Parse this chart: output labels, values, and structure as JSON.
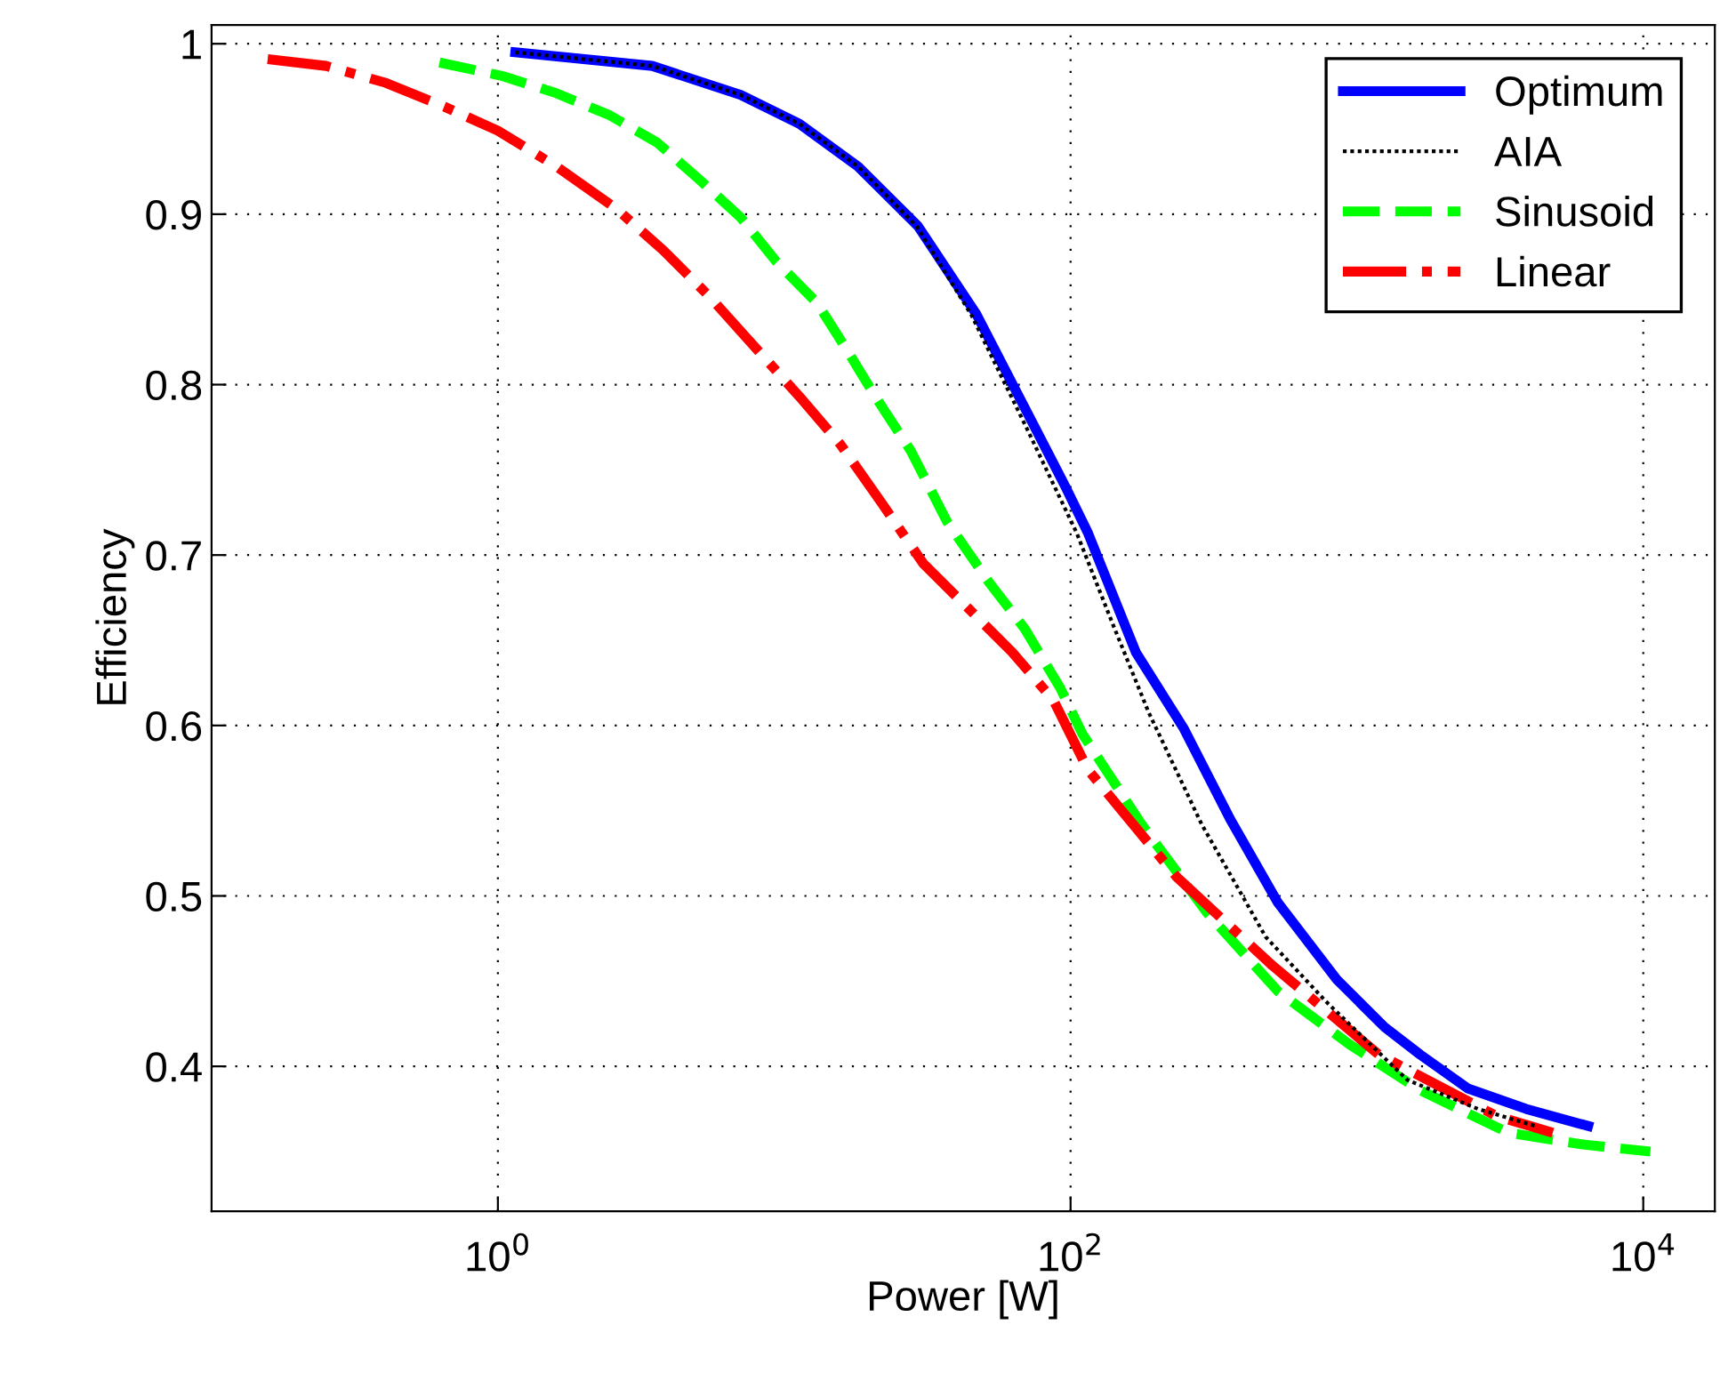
{
  "chart_data": {
    "type": "line",
    "xlabel": "Power [W]",
    "ylabel": "Efficiency",
    "log": "x",
    "xlim": [
      0.1,
      17783
    ],
    "xticks": [
      {
        "value": 1,
        "label": "10$^{0}$"
      },
      {
        "value": 100,
        "label": "10$^{2}$"
      },
      {
        "value": 10000,
        "label": "10$^{4}$"
      }
    ],
    "ylim": [
      0.315,
      1.011
    ],
    "yticks": [
      0.4,
      0.5,
      0.6,
      0.7,
      0.8,
      0.9,
      {
        "value": 1,
        "label": "1"
      }
    ],
    "grid": true,
    "legend": "top right",
    "series": [
      {
        "name": "Optimum",
        "color": "#0000ff",
        "line_style": "solid",
        "x": [
          1.15,
          3.46,
          7.05,
          11.3,
          18.1,
          29.3,
          47,
          75,
          96,
          115,
          169,
          249,
          361,
          530,
          850,
          1250,
          1660,
          2440,
          3900,
          6420
        ],
        "values": [
          0.995,
          0.987,
          0.97,
          0.953,
          0.928,
          0.893,
          0.841,
          0.775,
          0.74,
          0.713,
          0.643,
          0.598,
          0.545,
          0.496,
          0.451,
          0.423,
          0.407,
          0.387,
          0.375,
          0.365
        ]
      },
      {
        "name": "AIA",
        "color": "#000000",
        "line_style": "dotted",
        "x": [
          1.15,
          3.46,
          7.05,
          11.3,
          18.1,
          29,
          45,
          70,
          88,
          105,
          140,
          187,
          287,
          480,
          780,
          1500,
          2650,
          4190
        ],
        "values": [
          0.995,
          0.987,
          0.97,
          0.953,
          0.928,
          0.893,
          0.841,
          0.775,
          0.74,
          0.713,
          0.66,
          0.608,
          0.542,
          0.476,
          0.438,
          0.392,
          0.375,
          0.365
        ]
      },
      {
        "name": "Sinusoid",
        "color": "#00ff00",
        "line_style": "dashed",
        "x": [
          0.625,
          1.04,
          1.6,
          2.46,
          3.6,
          5.0,
          7.05,
          9.4,
          13,
          16.6,
          20.8,
          27.7,
          36.9,
          51.9,
          69,
          92,
          110,
          177,
          300,
          530,
          940,
          1660,
          3380,
          6250,
          10590
        ],
        "values": [
          0.989,
          0.981,
          0.971,
          0.958,
          0.942,
          0.921,
          0.898,
          0.872,
          0.848,
          0.82,
          0.793,
          0.761,
          0.72,
          0.684,
          0.657,
          0.622,
          0.595,
          0.542,
          0.49,
          0.444,
          0.413,
          0.386,
          0.361,
          0.354,
          0.35
        ]
      },
      {
        "name": "Linear",
        "color": "#ff0000",
        "line_style": "dashdot",
        "x": [
          0.157,
          0.251,
          0.407,
          0.652,
          1,
          1.6,
          2.6,
          3.77,
          5.53,
          8.1,
          11.3,
          15.7,
          22,
          30.6,
          45,
          62.5,
          87,
          115,
          235,
          508,
          1190,
          3060,
          4830
        ],
        "values": [
          0.991,
          0.987,
          0.977,
          0.963,
          0.949,
          0.928,
          0.903,
          0.879,
          0.851,
          0.82,
          0.793,
          0.765,
          0.73,
          0.695,
          0.667,
          0.643,
          0.615,
          0.574,
          0.511,
          0.459,
          0.407,
          0.371,
          0.361
        ]
      }
    ]
  }
}
